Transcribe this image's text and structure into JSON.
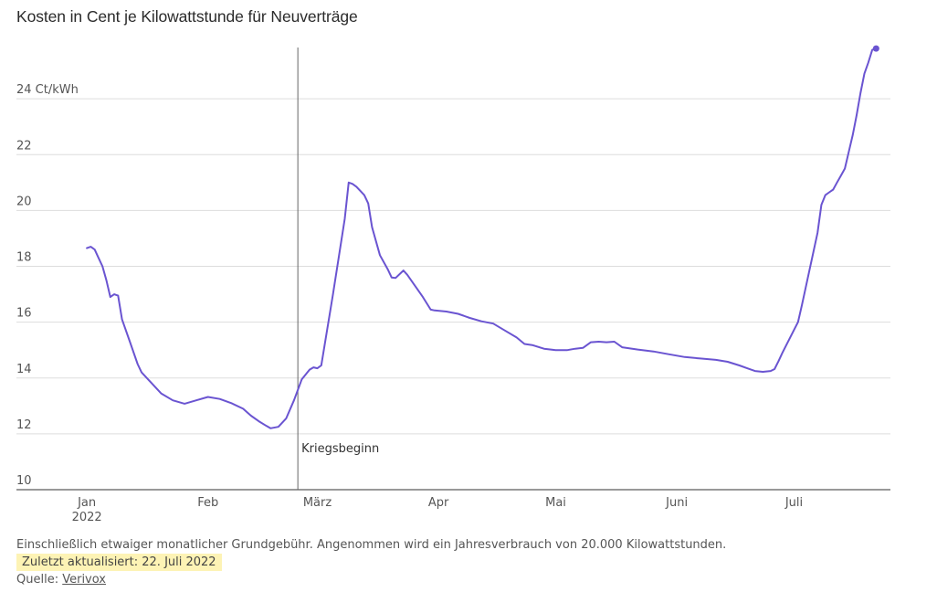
{
  "title": "Kosten in Cent je Kilowattstunde für Neuverträge",
  "footer": {
    "note": "Einschließlich etwaiger monatlicher Grundgebühr. Angenommen wird ein Jahresverbrauch von 20.000 Kilowattstunden.",
    "updated": "Zuletzt aktualisiert: 22. Juli 2022",
    "source_label": "Quelle:",
    "source_link": "Verivox"
  },
  "colors": {
    "line": "#6a54d1",
    "grid": "#dddddd",
    "axis": "#333333",
    "marker": "#666666",
    "highlight": "#fdf3b5"
  },
  "chart_data": {
    "type": "line",
    "title": "Kosten in Cent je Kilowattstunde für Neuverträge",
    "ylim": [
      10,
      26
    ],
    "y_ticks": [
      {
        "value": 10,
        "label": "10"
      },
      {
        "value": 12,
        "label": "12"
      },
      {
        "value": 14,
        "label": "14"
      },
      {
        "value": 16,
        "label": "16"
      },
      {
        "value": 18,
        "label": "18"
      },
      {
        "value": 20,
        "label": "20"
      },
      {
        "value": 22,
        "label": "22"
      },
      {
        "value": 24,
        "label": "24 Ct/kWh"
      }
    ],
    "x_ticks": [
      {
        "date": "2022-01-01",
        "label": "Jan",
        "sublabel": "2022"
      },
      {
        "date": "2022-02-01",
        "label": "Feb"
      },
      {
        "date": "2022-03-01",
        "label": "März"
      },
      {
        "date": "2022-04-01",
        "label": "Apr"
      },
      {
        "date": "2022-05-01",
        "label": "Mai"
      },
      {
        "date": "2022-06-01",
        "label": "Juni"
      },
      {
        "date": "2022-07-01",
        "label": "Juli"
      }
    ],
    "xlim": [
      "2021-12-28",
      "2022-07-28"
    ],
    "grid": true,
    "annotation": {
      "date": "2022-02-24",
      "label": "Kriegsbeginn"
    },
    "series": [
      {
        "points": [
          [
            "2022-01-01",
            18.65
          ],
          [
            "2022-01-02",
            18.7
          ],
          [
            "2022-01-03",
            18.6
          ],
          [
            "2022-01-04",
            18.3
          ],
          [
            "2022-01-05",
            18.0
          ],
          [
            "2022-01-06",
            17.5
          ],
          [
            "2022-01-07",
            16.9
          ],
          [
            "2022-01-08",
            17.0
          ],
          [
            "2022-01-09",
            16.95
          ],
          [
            "2022-01-10",
            16.1
          ],
          [
            "2022-01-12",
            15.3
          ],
          [
            "2022-01-14",
            14.5
          ],
          [
            "2022-01-15",
            14.2
          ],
          [
            "2022-01-17",
            13.9
          ],
          [
            "2022-01-20",
            13.45
          ],
          [
            "2022-01-23",
            13.2
          ],
          [
            "2022-01-26",
            13.08
          ],
          [
            "2022-01-29",
            13.2
          ],
          [
            "2022-02-01",
            13.32
          ],
          [
            "2022-02-04",
            13.25
          ],
          [
            "2022-02-07",
            13.1
          ],
          [
            "2022-02-10",
            12.9
          ],
          [
            "2022-02-12",
            12.65
          ],
          [
            "2022-02-14",
            12.45
          ],
          [
            "2022-02-16",
            12.28
          ],
          [
            "2022-02-17",
            12.2
          ],
          [
            "2022-02-19",
            12.25
          ],
          [
            "2022-02-21",
            12.55
          ],
          [
            "2022-02-23",
            13.2
          ],
          [
            "2022-02-25",
            13.95
          ],
          [
            "2022-02-27",
            14.3
          ],
          [
            "2022-02-28",
            14.38
          ],
          [
            "2022-03-01",
            14.35
          ],
          [
            "2022-03-02",
            14.45
          ],
          [
            "2022-03-05",
            17.0
          ],
          [
            "2022-03-08",
            19.7
          ],
          [
            "2022-03-09",
            21.0
          ],
          [
            "2022-03-10",
            20.95
          ],
          [
            "2022-03-11",
            20.85
          ],
          [
            "2022-03-13",
            20.55
          ],
          [
            "2022-03-14",
            20.25
          ],
          [
            "2022-03-15",
            19.4
          ],
          [
            "2022-03-17",
            18.4
          ],
          [
            "2022-03-19",
            17.9
          ],
          [
            "2022-03-20",
            17.6
          ],
          [
            "2022-03-21",
            17.58
          ],
          [
            "2022-03-23",
            17.85
          ],
          [
            "2022-03-24",
            17.7
          ],
          [
            "2022-03-26",
            17.3
          ],
          [
            "2022-03-28",
            16.9
          ],
          [
            "2022-03-30",
            16.45
          ],
          [
            "2022-03-31",
            16.42
          ],
          [
            "2022-04-03",
            16.38
          ],
          [
            "2022-04-06",
            16.3
          ],
          [
            "2022-04-09",
            16.15
          ],
          [
            "2022-04-12",
            16.03
          ],
          [
            "2022-04-15",
            15.95
          ],
          [
            "2022-04-18",
            15.7
          ],
          [
            "2022-04-21",
            15.45
          ],
          [
            "2022-04-23",
            15.22
          ],
          [
            "2022-04-25",
            15.18
          ],
          [
            "2022-04-28",
            15.05
          ],
          [
            "2022-05-01",
            15.0
          ],
          [
            "2022-05-04",
            15.0
          ],
          [
            "2022-05-06",
            15.05
          ],
          [
            "2022-05-08",
            15.08
          ],
          [
            "2022-05-10",
            15.28
          ],
          [
            "2022-05-12",
            15.3
          ],
          [
            "2022-05-14",
            15.28
          ],
          [
            "2022-05-16",
            15.3
          ],
          [
            "2022-05-18",
            15.1
          ],
          [
            "2022-05-22",
            15.02
          ],
          [
            "2022-05-26",
            14.95
          ],
          [
            "2022-05-30",
            14.85
          ],
          [
            "2022-06-03",
            14.75
          ],
          [
            "2022-06-07",
            14.7
          ],
          [
            "2022-06-11",
            14.65
          ],
          [
            "2022-06-14",
            14.58
          ],
          [
            "2022-06-17",
            14.45
          ],
          [
            "2022-06-19",
            14.35
          ],
          [
            "2022-06-21",
            14.25
          ],
          [
            "2022-06-23",
            14.22
          ],
          [
            "2022-06-25",
            14.25
          ],
          [
            "2022-06-26",
            14.32
          ],
          [
            "2022-06-27",
            14.6
          ],
          [
            "2022-06-28",
            14.9
          ],
          [
            "2022-06-30",
            15.45
          ],
          [
            "2022-07-02",
            16.0
          ],
          [
            "2022-07-03",
            16.6
          ],
          [
            "2022-07-05",
            17.9
          ],
          [
            "2022-07-07",
            19.2
          ],
          [
            "2022-07-08",
            20.2
          ],
          [
            "2022-07-09",
            20.55
          ],
          [
            "2022-07-10",
            20.65
          ],
          [
            "2022-07-11",
            20.75
          ],
          [
            "2022-07-12",
            21.0
          ],
          [
            "2022-07-13",
            21.25
          ],
          [
            "2022-07-14",
            21.5
          ],
          [
            "2022-07-15",
            22.1
          ],
          [
            "2022-07-16",
            22.7
          ],
          [
            "2022-07-17",
            23.4
          ],
          [
            "2022-07-18",
            24.2
          ],
          [
            "2022-07-19",
            24.9
          ],
          [
            "2022-07-20",
            25.3
          ],
          [
            "2022-07-21",
            25.75
          ],
          [
            "2022-07-22",
            25.8
          ]
        ]
      }
    ]
  }
}
